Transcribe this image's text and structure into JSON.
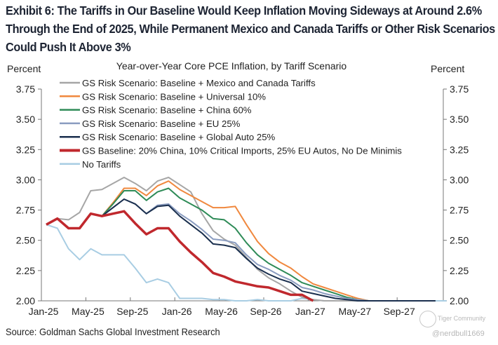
{
  "title": "Exhibit 6: The Tariffs in Our Baseline Would Keep Inflation Moving Sideways at Around 2.6% Through the End of 2025, While Permanent Mexico and Canada Tariffs or Other Risk Scenarios Could Push It Above 3%",
  "source": "Source: Goldman Sachs Global Investment Research",
  "watermark": {
    "brand": "Tiger Community",
    "handle": "@nerdbull1669"
  },
  "chart_data": {
    "type": "line",
    "title": "Year-over-Year  Core PCE Inflation,  by Tariff  Scenario",
    "ylabel_left": "Percent",
    "ylabel_right": "Percent",
    "xlabel": "",
    "ylim": [
      2.0,
      3.75
    ],
    "yticks": [
      "3.75",
      "3.50",
      "3.25",
      "3.00",
      "2.75",
      "2.50",
      "2.25",
      "2.00"
    ],
    "xticks": [
      "Jan-25",
      "May-25",
      "Sep-25",
      "Jan-26",
      "May-26",
      "Sep-26",
      "Jan-27",
      "May-27",
      "Sep-27"
    ],
    "x_start": "Jan-25",
    "x_frequency": "monthly",
    "grid": false,
    "legend_position": "top-left",
    "series": [
      {
        "name": "GS Risk Scenario: Baseline + Mexico and Canada Tariffs",
        "color": "#a6a6a6",
        "values": [
          2.63,
          2.68,
          2.67,
          2.73,
          2.91,
          2.92,
          2.97,
          3.02,
          2.97,
          2.91,
          2.99,
          3.02,
          2.96,
          2.9,
          2.72,
          2.58,
          2.51,
          2.46,
          2.36,
          2.26,
          2.19,
          2.14,
          2.08,
          2.03,
          2.01,
          2.0,
          2.0,
          2.0,
          2.0,
          2.0,
          2.0,
          2.0,
          2.0,
          2.0,
          2.0,
          2.0
        ]
      },
      {
        "name": "GS Risk Scenario: Baseline + Universal 10%",
        "color": "#f0883e",
        "values": [
          2.63,
          2.68,
          2.6,
          2.6,
          2.72,
          2.7,
          2.81,
          2.93,
          2.93,
          2.87,
          2.95,
          2.99,
          2.92,
          2.87,
          2.82,
          2.77,
          2.77,
          2.78,
          2.63,
          2.49,
          2.39,
          2.32,
          2.27,
          2.2,
          2.14,
          2.11,
          2.08,
          2.05,
          2.02,
          2.0,
          2.0,
          2.0,
          2.0,
          2.0,
          2.0,
          2.0
        ]
      },
      {
        "name": "GS Risk Scenario: Baseline + China 60%",
        "color": "#2e8b57",
        "values": [
          2.63,
          2.68,
          2.6,
          2.6,
          2.72,
          2.7,
          2.8,
          2.91,
          2.91,
          2.83,
          2.9,
          2.93,
          2.85,
          2.8,
          2.75,
          2.68,
          2.67,
          2.6,
          2.48,
          2.38,
          2.31,
          2.26,
          2.21,
          2.15,
          2.12,
          2.09,
          2.06,
          2.03,
          2.01,
          2.0,
          2.0,
          2.0,
          2.0,
          2.0,
          2.0,
          2.0
        ]
      },
      {
        "name": "GS Risk Scenario: Baseline + EU 25%",
        "color": "#8a9cc0",
        "values": [
          2.63,
          2.68,
          2.6,
          2.6,
          2.72,
          2.7,
          2.77,
          2.84,
          2.8,
          2.72,
          2.79,
          2.8,
          2.72,
          2.66,
          2.59,
          2.51,
          2.5,
          2.48,
          2.38,
          2.3,
          2.26,
          2.21,
          2.17,
          2.11,
          2.09,
          2.06,
          2.04,
          2.02,
          2.01,
          2.0,
          2.0,
          2.0,
          2.0,
          2.0,
          2.0,
          2.0
        ]
      },
      {
        "name": "GS Risk Scenario: Baseline + Global Auto 25%",
        "color": "#1a2f4e",
        "values": [
          2.63,
          2.68,
          2.6,
          2.6,
          2.72,
          2.7,
          2.77,
          2.84,
          2.8,
          2.72,
          2.78,
          2.79,
          2.7,
          2.63,
          2.56,
          2.47,
          2.46,
          2.44,
          2.35,
          2.27,
          2.22,
          2.18,
          2.15,
          2.08,
          2.06,
          2.04,
          2.02,
          2.01,
          2.0,
          2.0,
          2.0,
          2.0,
          2.0,
          2.0,
          2.0,
          2.0
        ]
      },
      {
        "name": "GS Baseline: 20% China, 10% Critical Imports, 25% EU Autos, No De Minimis",
        "color": "#c0282d",
        "bold": true,
        "values": [
          2.63,
          2.68,
          2.6,
          2.6,
          2.72,
          2.7,
          2.72,
          2.74,
          2.64,
          2.55,
          2.6,
          2.6,
          2.49,
          2.4,
          2.32,
          2.23,
          2.2,
          2.16,
          2.14,
          2.12,
          2.11,
          2.08,
          2.05,
          2.05,
          2.0
        ]
      },
      {
        "name": "No Tariffs",
        "color": "#a8cde3",
        "values": [
          2.63,
          2.6,
          2.43,
          2.34,
          2.43,
          2.38,
          2.38,
          2.38,
          2.27,
          2.15,
          2.18,
          2.15,
          2.02,
          2.02,
          2.02,
          2.01,
          2.01,
          2.0,
          2.0,
          2.01,
          2.0,
          2.0,
          2.0,
          2.02,
          2.01,
          2.0,
          2.0,
          2.0,
          2.0,
          2.0,
          2.0,
          2.0,
          2.0,
          2.0,
          2.0,
          2.0,
          2.0
        ]
      }
    ]
  }
}
